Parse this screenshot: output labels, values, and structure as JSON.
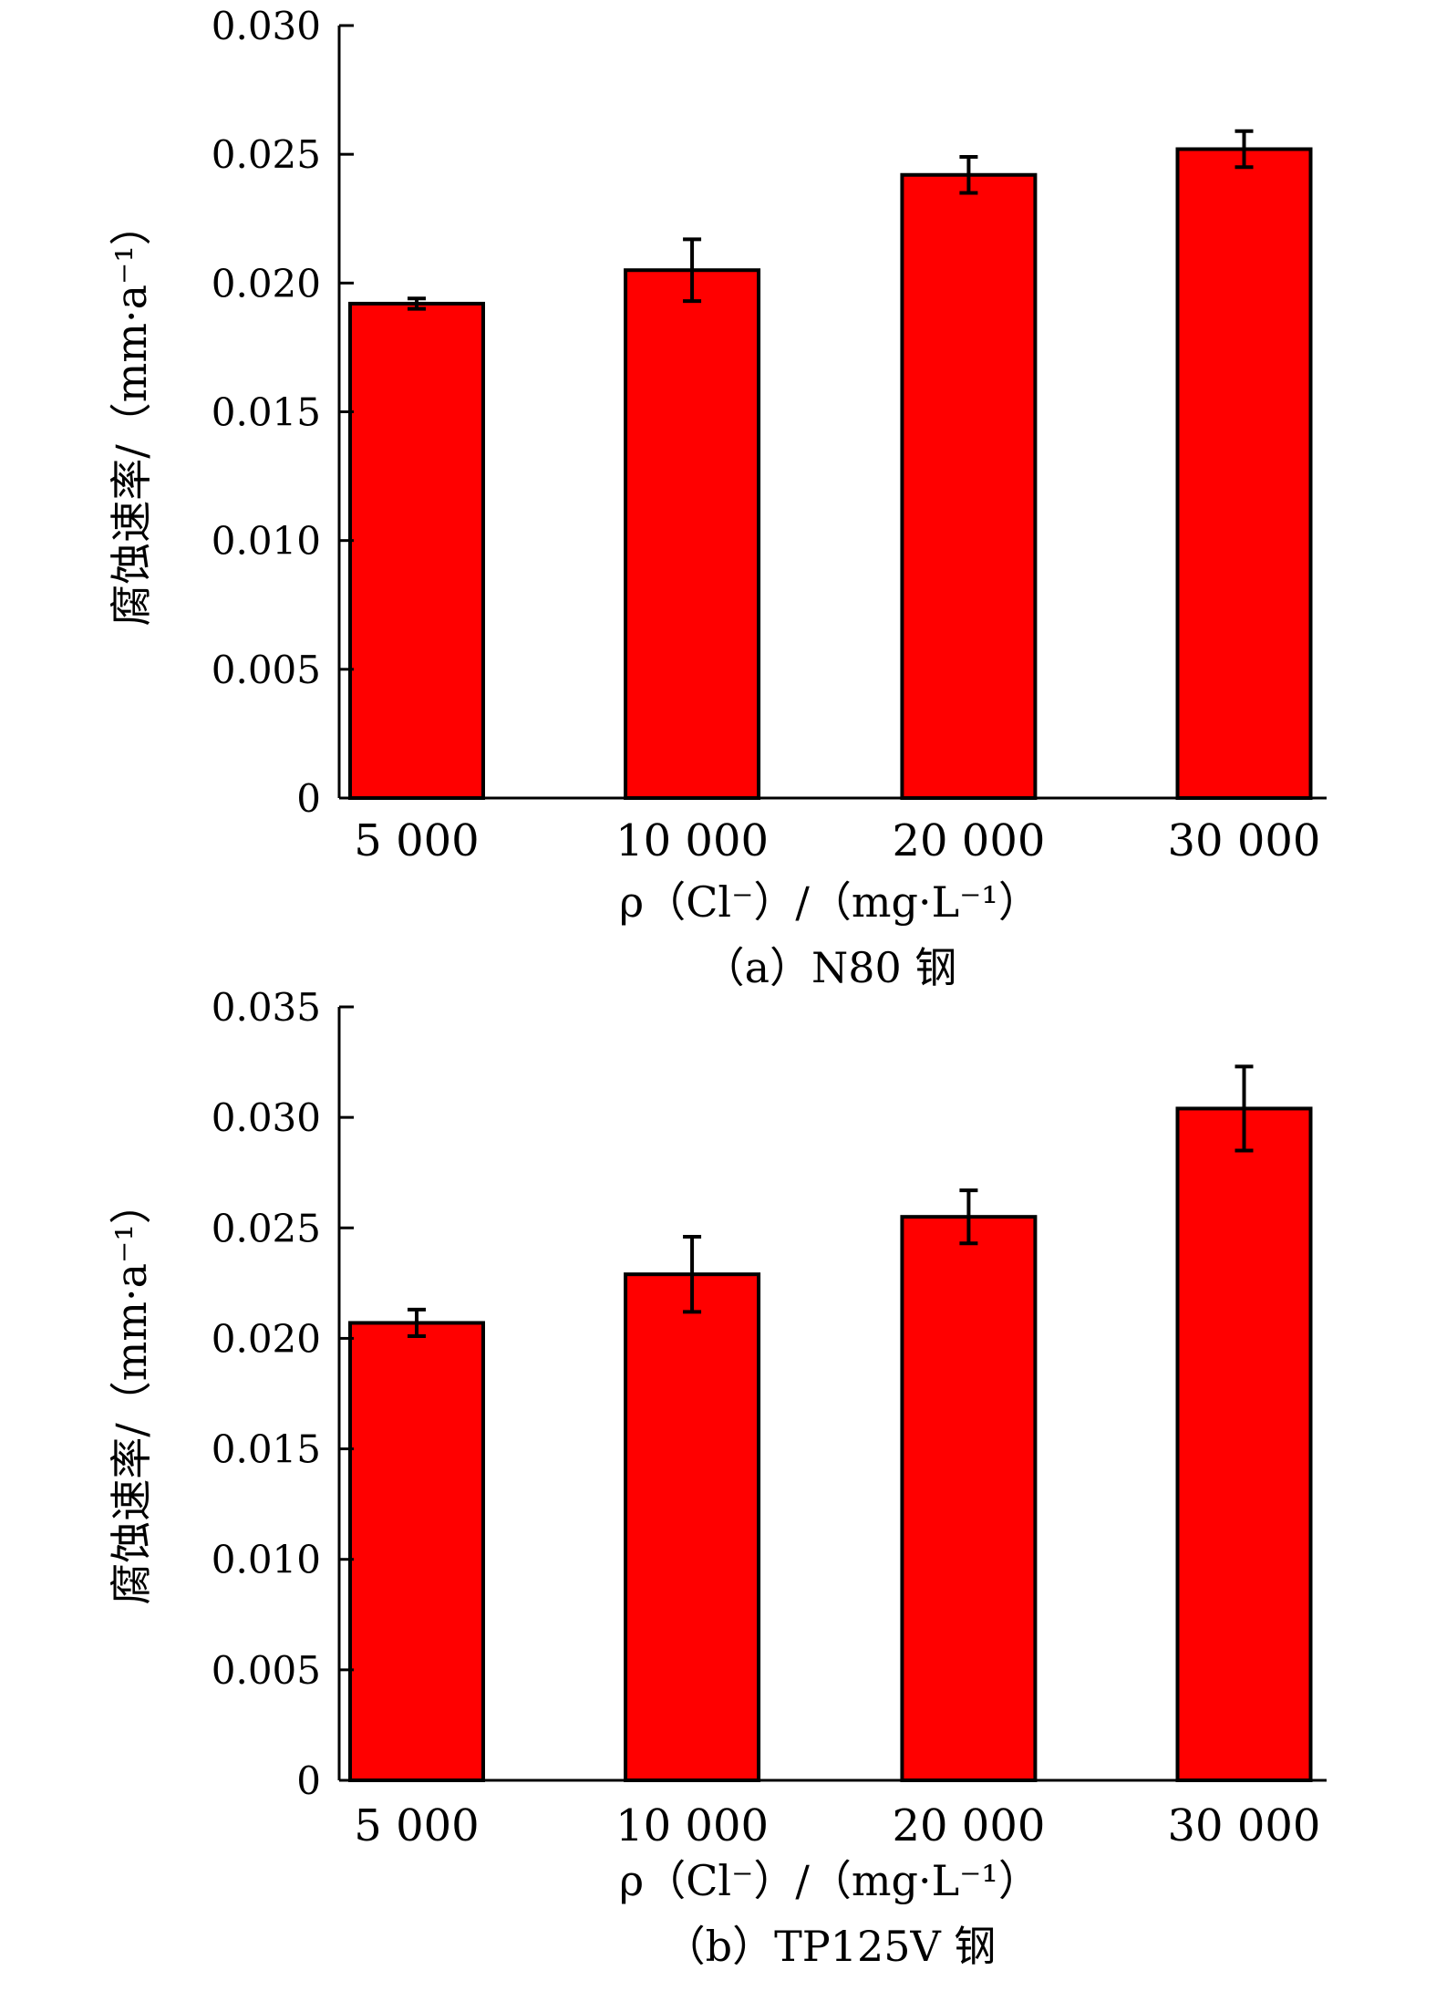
{
  "chart_data": [
    {
      "type": "bar",
      "caption": "（a）N80 钢",
      "xlabel": "ρ（Cl⁻）/（mg·L⁻¹）",
      "ylabel": "腐蚀速率/（mm·a⁻¹）",
      "categories": [
        "5 000",
        "10 000",
        "20 000",
        "30 000"
      ],
      "series": [
        {
          "values": [
            0.0192,
            0.0205,
            0.0242,
            0.0252
          ],
          "error": [
            0.0002,
            0.0012,
            0.0007,
            0.0007
          ]
        }
      ],
      "ylim": [
        0,
        0.03
      ],
      "yticks": [
        "0",
        "0.005",
        "0.010",
        "0.015",
        "0.020",
        "0.025",
        "0.030"
      ],
      "ytick_values": [
        0,
        0.005,
        0.01,
        0.015,
        0.02,
        0.025,
        0.03
      ],
      "bar_color": "#ff0000",
      "grid": false,
      "legend": "none"
    },
    {
      "type": "bar",
      "caption": "（b）TP125V 钢",
      "xlabel": "ρ（Cl⁻）/（mg·L⁻¹）",
      "ylabel": "腐蚀速率/（mm·a⁻¹）",
      "categories": [
        "5 000",
        "10 000",
        "20 000",
        "30 000"
      ],
      "series": [
        {
          "values": [
            0.0207,
            0.0229,
            0.0255,
            0.0304
          ],
          "error": [
            0.0006,
            0.0017,
            0.0012,
            0.0019
          ]
        }
      ],
      "ylim": [
        0,
        0.035
      ],
      "yticks": [
        "0",
        "0.005",
        "0.010",
        "0.015",
        "0.020",
        "0.025",
        "0.030",
        "0.035"
      ],
      "ytick_values": [
        0,
        0.005,
        0.01,
        0.015,
        0.02,
        0.025,
        0.03,
        0.035
      ],
      "bar_color": "#ff0000",
      "grid": false,
      "legend": "none"
    }
  ]
}
